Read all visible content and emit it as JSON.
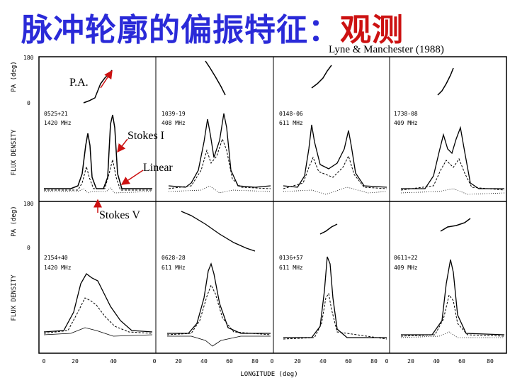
{
  "title_main": "脉冲轮廓的偏振特征：",
  "title_accent": "观测",
  "citation": "Lyne & Manchester (1988)",
  "annotations": {
    "pa": "P.A.",
    "stokes_i": "Stokes I",
    "linear": "Linear",
    "stokes_v": "Stokes V"
  },
  "axis": {
    "pa_label": "PA (deg)",
    "flux_label": "FLUX DENSITY",
    "pa_top_tick": "180",
    "pa_bottom_tick": "0",
    "pa_mid_tick": "180",
    "x_label": "LONGITUDE (deg)"
  },
  "panels": [
    {
      "name": "0525+21",
      "freq": "1420 MHz"
    },
    {
      "name": "1039-19",
      "freq": "408 MHz"
    },
    {
      "name": "0148-06",
      "freq": "611 MHz"
    },
    {
      "name": "1738-08",
      "freq": "409 MHz"
    },
    {
      "name": "2154+40",
      "freq": "1420 MHz"
    },
    {
      "name": "0628-28",
      "freq": "611 MHz"
    },
    {
      "name": "0136+57",
      "freq": "611 MHz"
    },
    {
      "name": "0611+22",
      "freq": "409 MHz"
    }
  ],
  "x_ticks": [
    [
      "0",
      "20",
      "40"
    ],
    [
      "0",
      "20",
      "40",
      "60",
      "80"
    ],
    [
      "0",
      "20",
      "40",
      "60",
      "80"
    ],
    [
      "0",
      "20",
      "40",
      "60",
      "80"
    ]
  ],
  "colors": {
    "title_blue": "#2a2ad8",
    "title_red": "#cc1111",
    "arrow": "#cc1111"
  }
}
